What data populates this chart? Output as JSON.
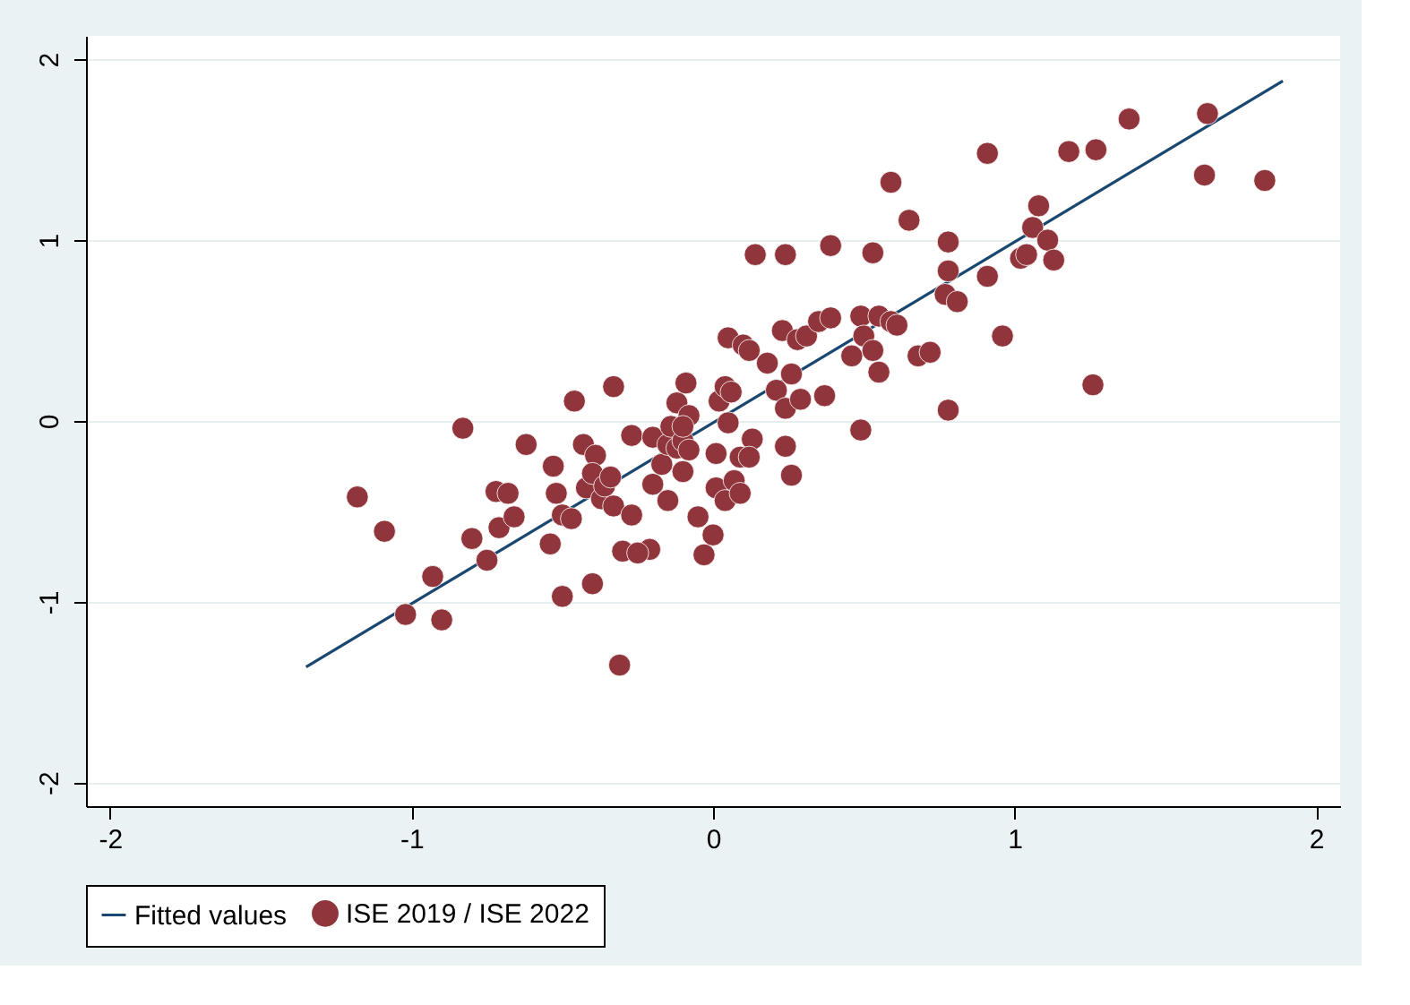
{
  "chart_data": {
    "type": "scatter",
    "xlim": [
      -2.08,
      2.08
    ],
    "ylim": [
      -2.13,
      2.13
    ],
    "xticks": [
      -2,
      -1,
      0,
      1,
      2
    ],
    "yticks": [
      -2,
      -1,
      0,
      1,
      2
    ],
    "grid": "y",
    "legend": "bottom",
    "series": [
      {
        "name": "Fitted values",
        "type": "line",
        "color": "#1a476f",
        "x": [
          -1.35,
          1.89
        ],
        "values": [
          -1.36,
          1.88
        ]
      },
      {
        "name": "ISE 2019 / ISE 2022",
        "color": "#90353b",
        "marker": "circle",
        "x": [
          -1.18,
          -1.09,
          -0.93,
          -1.02,
          -0.9,
          -0.83,
          -0.8,
          -0.75,
          -0.72,
          -0.71,
          -0.68,
          -0.66,
          -0.62,
          -0.53,
          -0.54,
          -0.52,
          -0.5,
          -0.5,
          -0.46,
          -0.47,
          -0.43,
          -0.42,
          -0.4,
          -0.39,
          -0.37,
          -0.4,
          -0.36,
          -0.33,
          -0.34,
          -0.33,
          -0.31,
          -0.3,
          -0.27,
          -0.27,
          -0.21,
          -0.25,
          -0.2,
          -0.2,
          -0.17,
          -0.15,
          -0.15,
          -0.14,
          -0.12,
          -0.12,
          -0.1,
          -0.1,
          -0.09,
          -0.08,
          -0.08,
          -0.1,
          -0.03,
          -0.05,
          0.0,
          0.01,
          0.01,
          0.02,
          0.04,
          0.04,
          0.05,
          0.06,
          0.07,
          0.05,
          0.09,
          0.09,
          0.1,
          0.12,
          0.13,
          0.14,
          0.12,
          0.18,
          0.21,
          0.24,
          0.23,
          0.24,
          0.24,
          0.26,
          0.26,
          0.28,
          0.29,
          0.31,
          0.35,
          0.37,
          0.39,
          0.39,
          0.46,
          0.49,
          0.49,
          0.5,
          0.53,
          0.53,
          0.55,
          0.55,
          0.59,
          0.59,
          0.61,
          0.65,
          0.68,
          0.72,
          0.77,
          0.78,
          0.78,
          0.78,
          0.81,
          0.91,
          0.91,
          0.96,
          1.02,
          1.04,
          1.06,
          1.08,
          1.11,
          1.13,
          1.18,
          1.26,
          1.27,
          1.38,
          1.63,
          1.64,
          1.83
        ],
        "values": [
          -0.42,
          -0.61,
          -0.86,
          -1.07,
          -1.1,
          -0.04,
          -0.65,
          -0.77,
          -0.39,
          -0.59,
          -0.4,
          -0.53,
          -0.13,
          -0.25,
          -0.68,
          -0.4,
          -0.52,
          -0.97,
          0.11,
          -0.54,
          -0.13,
          -0.37,
          -0.9,
          -0.19,
          -0.43,
          -0.29,
          -0.36,
          0.19,
          -0.31,
          -0.47,
          -1.35,
          -0.72,
          -0.08,
          -0.52,
          -0.71,
          -0.73,
          -0.09,
          -0.35,
          -0.24,
          -0.13,
          -0.44,
          -0.03,
          -0.15,
          0.1,
          -0.11,
          -0.28,
          0.21,
          0.03,
          -0.16,
          -0.03,
          -0.74,
          -0.53,
          -0.63,
          -0.37,
          -0.18,
          0.11,
          0.19,
          -0.44,
          -0.01,
          0.16,
          -0.33,
          0.46,
          -0.2,
          -0.4,
          0.42,
          0.39,
          -0.1,
          0.92,
          -0.2,
          0.32,
          0.17,
          0.92,
          0.5,
          0.07,
          -0.14,
          -0.3,
          0.26,
          0.45,
          0.12,
          0.47,
          0.55,
          0.14,
          0.57,
          0.97,
          0.36,
          0.58,
          -0.05,
          0.47,
          0.93,
          0.39,
          0.27,
          0.58,
          1.32,
          0.55,
          0.53,
          1.11,
          0.36,
          0.38,
          0.7,
          0.06,
          0.99,
          0.83,
          0.66,
          1.48,
          0.8,
          0.47,
          0.9,
          0.92,
          1.07,
          1.19,
          1.0,
          0.89,
          1.49,
          0.2,
          1.5,
          1.67,
          1.36,
          1.7,
          1.33
        ]
      }
    ]
  }
}
